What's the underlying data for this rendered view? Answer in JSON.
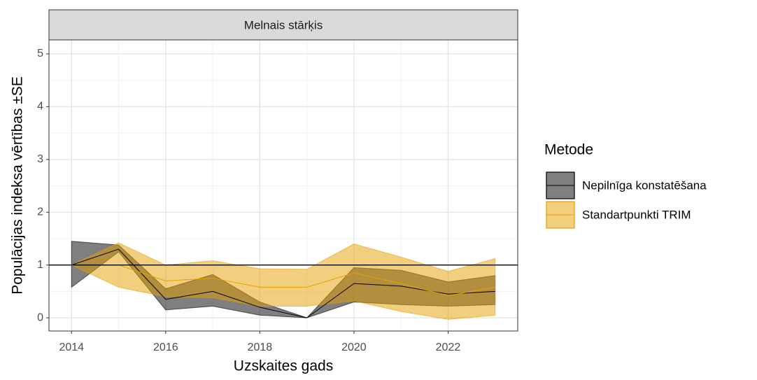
{
  "chart_data": {
    "type": "ribbon-line",
    "strip_title": "Melnais stārķis",
    "x_label": "Uzskaites gads",
    "y_label": "Populācijas indeksa vērtības ±SE",
    "x": [
      2014,
      2015,
      2016,
      2017,
      2018,
      2019,
      2020,
      2021,
      2022,
      2023
    ],
    "series": [
      {
        "name": "Nepilnīga konstatēšana",
        "color": "#000000",
        "values": [
          1.0,
          1.3,
          0.35,
          0.5,
          0.2,
          0.0,
          0.65,
          0.6,
          0.45,
          0.5
        ],
        "lower": [
          0.58,
          1.25,
          0.15,
          0.22,
          0.05,
          0.0,
          0.3,
          0.25,
          0.22,
          0.25
        ],
        "upper": [
          1.45,
          1.38,
          0.55,
          0.82,
          0.3,
          0.0,
          0.95,
          0.9,
          0.68,
          0.8
        ]
      },
      {
        "name": "Standartpunkti TRIM",
        "color": "#e6a000",
        "values": [
          1.0,
          1.0,
          0.7,
          0.75,
          0.58,
          0.58,
          0.85,
          0.65,
          0.42,
          0.58
        ],
        "lower": [
          1.0,
          0.58,
          0.4,
          0.38,
          0.22,
          0.22,
          0.32,
          0.12,
          -0.03,
          0.05
        ],
        "upper": [
          1.0,
          1.42,
          1.0,
          1.08,
          0.93,
          0.92,
          1.4,
          1.15,
          0.88,
          1.12
        ]
      }
    ],
    "reference_line": 1,
    "legend_title": "Metode",
    "legend_position": "right",
    "xlim": [
      2013.52,
      2023.48
    ],
    "xticks": [
      2014,
      2016,
      2018,
      2020,
      2022
    ],
    "ylim": [
      -0.25,
      5.265
    ],
    "yticks": [
      0,
      1,
      2,
      3,
      4,
      5
    ],
    "grid": true
  }
}
